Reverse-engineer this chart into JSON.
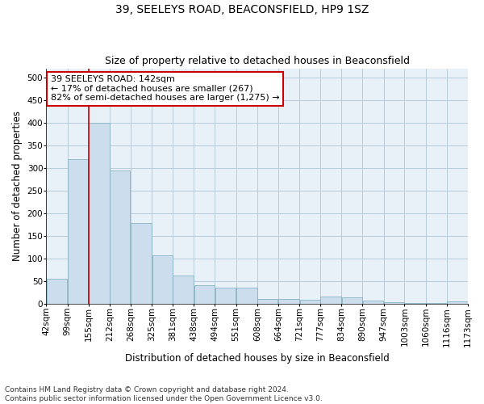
{
  "title_line1": "39, SEELEYS ROAD, BEACONSFIELD, HP9 1SZ",
  "title_line2": "Size of property relative to detached houses in Beaconsfield",
  "xlabel": "Distribution of detached houses by size in Beaconsfield",
  "ylabel": "Number of detached properties",
  "bar_color": "#ccdded",
  "bar_edge_color": "#7aaabb",
  "grid_color": "#b8ccd8",
  "background_color": "#e8f0f8",
  "property_line_x": 155,
  "property_line_color": "#cc0000",
  "annotation_text": "39 SEELEYS ROAD: 142sqm\n← 17% of detached houses are smaller (267)\n82% of semi-detached houses are larger (1,275) →",
  "annotation_box_color": "#ffffff",
  "annotation_border_color": "#cc0000",
  "bin_edges": [
    42,
    99,
    155,
    212,
    268,
    325,
    381,
    438,
    494,
    551,
    608,
    664,
    721,
    777,
    834,
    890,
    947,
    1003,
    1060,
    1116,
    1173
  ],
  "bar_heights": [
    55,
    320,
    400,
    295,
    178,
    107,
    62,
    41,
    36,
    35,
    10,
    10,
    8,
    15,
    14,
    7,
    4,
    2,
    1,
    5
  ],
  "ylim": [
    0,
    520
  ],
  "yticks": [
    0,
    50,
    100,
    150,
    200,
    250,
    300,
    350,
    400,
    450,
    500
  ],
  "footer_text": "Contains HM Land Registry data © Crown copyright and database right 2024.\nContains public sector information licensed under the Open Government Licence v3.0.",
  "title_fontsize": 10,
  "subtitle_fontsize": 9,
  "axis_label_fontsize": 8.5,
  "tick_fontsize": 7.5,
  "annotation_fontsize": 8,
  "footer_fontsize": 6.5
}
